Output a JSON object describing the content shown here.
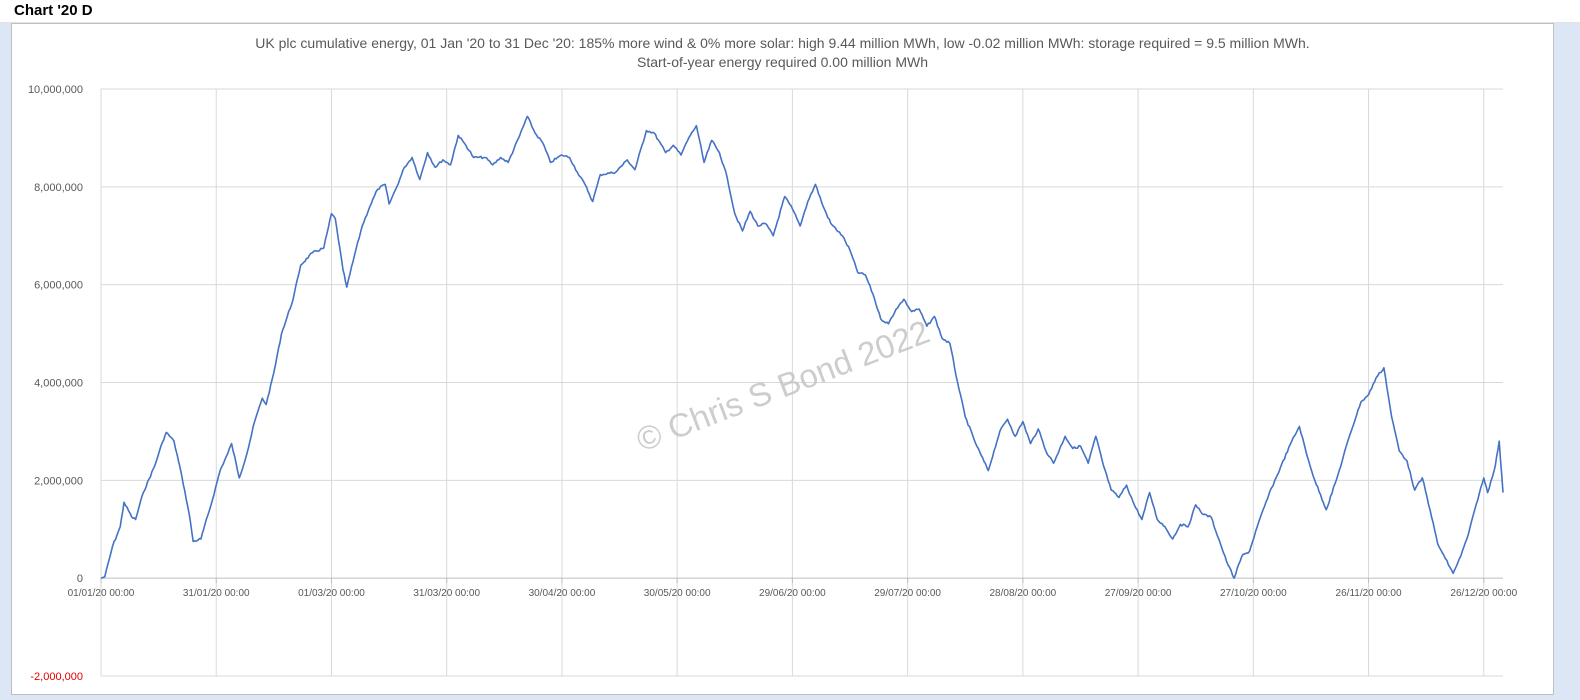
{
  "sheet": {
    "title": "Chart '20 D"
  },
  "watermark": "© Chris S Bond  2022",
  "colors": {
    "line": "#4472c4",
    "grid": "#d9d9d9",
    "negative_label": "#e00000",
    "text": "#595959"
  },
  "chart_data": {
    "type": "line",
    "title": "UK plc cumulative energy, 01 Jan '20 to 31 Dec '20: 185% more wind & 0% more solar: high 9.44 million MWh, low -0.02 million MWh: storage required = 9.5 million MWh.",
    "subtitle": "Start-of-year energy required 0.00 million MWh",
    "xlabel": "",
    "ylabel": "",
    "ylim": [
      -2000000,
      10000000
    ],
    "yticks": [
      {
        "value": 10000000,
        "label": "10,000,000"
      },
      {
        "value": 8000000,
        "label": "8,000,000"
      },
      {
        "value": 6000000,
        "label": "6,000,000"
      },
      {
        "value": 4000000,
        "label": "4,000,000"
      },
      {
        "value": 2000000,
        "label": "2,000,000"
      },
      {
        "value": 0,
        "label": "0"
      },
      {
        "value": -2000000,
        "label": "-2,000,000"
      }
    ],
    "xlim": [
      "2020-01-01",
      "2020-12-31"
    ],
    "xticks": [
      {
        "date": "2020-01-01",
        "label": "01/01/20 00:00"
      },
      {
        "date": "2020-01-31",
        "label": "31/01/20 00:00"
      },
      {
        "date": "2020-03-01",
        "label": "01/03/20 00:00"
      },
      {
        "date": "2020-03-31",
        "label": "31/03/20 00:00"
      },
      {
        "date": "2020-04-30",
        "label": "30/04/20 00:00"
      },
      {
        "date": "2020-05-30",
        "label": "30/05/20 00:00"
      },
      {
        "date": "2020-06-29",
        "label": "29/06/20 00:00"
      },
      {
        "date": "2020-07-29",
        "label": "29/07/20 00:00"
      },
      {
        "date": "2020-08-28",
        "label": "28/08/20 00:00"
      },
      {
        "date": "2020-09-27",
        "label": "27/09/20 00:00"
      },
      {
        "date": "2020-10-27",
        "label": "27/10/20 00:00"
      },
      {
        "date": "2020-11-26",
        "label": "26/11/20 00:00"
      },
      {
        "date": "2020-12-26",
        "label": "26/12/20 00:00"
      }
    ],
    "grid": true,
    "legend": "none",
    "series": [
      {
        "points": [
          [
            "2020-01-01",
            0
          ],
          [
            "2020-01-02",
            30000
          ],
          [
            "2020-01-04",
            650000
          ],
          [
            "2020-01-06",
            1050000
          ],
          [
            "2020-01-07",
            1550000
          ],
          [
            "2020-01-09",
            1250000
          ],
          [
            "2020-01-10",
            1200000
          ],
          [
            "2020-01-12",
            1750000
          ],
          [
            "2020-01-15",
            2300000
          ],
          [
            "2020-01-17",
            2780000
          ],
          [
            "2020-01-18",
            2980000
          ],
          [
            "2020-01-20",
            2800000
          ],
          [
            "2020-01-22",
            2100000
          ],
          [
            "2020-01-24",
            1300000
          ],
          [
            "2020-01-25",
            750000
          ],
          [
            "2020-01-27",
            800000
          ],
          [
            "2020-01-30",
            1600000
          ],
          [
            "2020-02-01",
            2200000
          ],
          [
            "2020-02-03",
            2550000
          ],
          [
            "2020-02-04",
            2750000
          ],
          [
            "2020-02-06",
            2050000
          ],
          [
            "2020-02-08",
            2550000
          ],
          [
            "2020-02-10",
            3200000
          ],
          [
            "2020-02-12",
            3680000
          ],
          [
            "2020-02-13",
            3550000
          ],
          [
            "2020-02-15",
            4200000
          ],
          [
            "2020-02-17",
            5000000
          ],
          [
            "2020-02-20",
            5700000
          ],
          [
            "2020-02-22",
            6400000
          ],
          [
            "2020-02-25",
            6650000
          ],
          [
            "2020-02-28",
            6750000
          ],
          [
            "2020-03-01",
            7450000
          ],
          [
            "2020-03-02",
            7350000
          ],
          [
            "2020-03-04",
            6300000
          ],
          [
            "2020-03-05",
            5950000
          ],
          [
            "2020-03-07",
            6600000
          ],
          [
            "2020-03-09",
            7200000
          ],
          [
            "2020-03-11",
            7600000
          ],
          [
            "2020-03-13",
            7950000
          ],
          [
            "2020-03-15",
            8050000
          ],
          [
            "2020-03-16",
            7650000
          ],
          [
            "2020-03-18",
            8000000
          ],
          [
            "2020-03-20",
            8400000
          ],
          [
            "2020-03-22",
            8600000
          ],
          [
            "2020-03-24",
            8150000
          ],
          [
            "2020-03-26",
            8700000
          ],
          [
            "2020-03-28",
            8400000
          ],
          [
            "2020-03-30",
            8550000
          ],
          [
            "2020-04-01",
            8450000
          ],
          [
            "2020-04-03",
            9050000
          ],
          [
            "2020-04-05",
            8850000
          ],
          [
            "2020-04-07",
            8600000
          ],
          [
            "2020-04-10",
            8600000
          ],
          [
            "2020-04-12",
            8450000
          ],
          [
            "2020-04-14",
            8600000
          ],
          [
            "2020-04-16",
            8500000
          ],
          [
            "2020-04-19",
            9050000
          ],
          [
            "2020-04-21",
            9440000
          ],
          [
            "2020-04-23",
            9100000
          ],
          [
            "2020-04-25",
            8900000
          ],
          [
            "2020-04-27",
            8500000
          ],
          [
            "2020-04-30",
            8650000
          ],
          [
            "2020-05-02",
            8600000
          ],
          [
            "2020-05-04",
            8300000
          ],
          [
            "2020-05-06",
            8050000
          ],
          [
            "2020-05-08",
            7700000
          ],
          [
            "2020-05-10",
            8250000
          ],
          [
            "2020-05-14",
            8300000
          ],
          [
            "2020-05-17",
            8550000
          ],
          [
            "2020-05-19",
            8350000
          ],
          [
            "2020-05-22",
            9150000
          ],
          [
            "2020-05-24",
            9100000
          ],
          [
            "2020-05-27",
            8700000
          ],
          [
            "2020-05-29",
            8850000
          ],
          [
            "2020-05-31",
            8650000
          ],
          [
            "2020-06-02",
            9000000
          ],
          [
            "2020-06-04",
            9250000
          ],
          [
            "2020-06-06",
            8500000
          ],
          [
            "2020-06-08",
            8950000
          ],
          [
            "2020-06-10",
            8700000
          ],
          [
            "2020-06-12",
            8200000
          ],
          [
            "2020-06-14",
            7450000
          ],
          [
            "2020-06-16",
            7100000
          ],
          [
            "2020-06-18",
            7500000
          ],
          [
            "2020-06-20",
            7200000
          ],
          [
            "2020-06-22",
            7250000
          ],
          [
            "2020-06-24",
            7000000
          ],
          [
            "2020-06-27",
            7800000
          ],
          [
            "2020-06-29",
            7550000
          ],
          [
            "2020-07-01",
            7200000
          ],
          [
            "2020-07-03",
            7700000
          ],
          [
            "2020-07-05",
            8050000
          ],
          [
            "2020-07-07",
            7600000
          ],
          [
            "2020-07-09",
            7250000
          ],
          [
            "2020-07-12",
            7000000
          ],
          [
            "2020-07-14",
            6700000
          ],
          [
            "2020-07-16",
            6250000
          ],
          [
            "2020-07-18",
            6200000
          ],
          [
            "2020-07-20",
            5800000
          ],
          [
            "2020-07-22",
            5300000
          ],
          [
            "2020-07-24",
            5200000
          ],
          [
            "2020-07-26",
            5500000
          ],
          [
            "2020-07-28",
            5700000
          ],
          [
            "2020-07-30",
            5450000
          ],
          [
            "2020-08-01",
            5500000
          ],
          [
            "2020-08-03",
            5150000
          ],
          [
            "2020-08-05",
            5350000
          ],
          [
            "2020-08-07",
            4900000
          ],
          [
            "2020-08-09",
            4800000
          ],
          [
            "2020-08-11",
            4000000
          ],
          [
            "2020-08-13",
            3300000
          ],
          [
            "2020-08-16",
            2700000
          ],
          [
            "2020-08-19",
            2200000
          ],
          [
            "2020-08-22",
            3000000
          ],
          [
            "2020-08-24",
            3250000
          ],
          [
            "2020-08-26",
            2900000
          ],
          [
            "2020-08-28",
            3200000
          ],
          [
            "2020-08-30",
            2750000
          ],
          [
            "2020-09-01",
            3050000
          ],
          [
            "2020-09-03",
            2600000
          ],
          [
            "2020-09-05",
            2350000
          ],
          [
            "2020-09-08",
            2900000
          ],
          [
            "2020-09-10",
            2650000
          ],
          [
            "2020-09-12",
            2700000
          ],
          [
            "2020-09-14",
            2350000
          ],
          [
            "2020-09-16",
            2900000
          ],
          [
            "2020-09-18",
            2300000
          ],
          [
            "2020-09-20",
            1800000
          ],
          [
            "2020-09-22",
            1650000
          ],
          [
            "2020-09-24",
            1900000
          ],
          [
            "2020-09-26",
            1500000
          ],
          [
            "2020-09-28",
            1200000
          ],
          [
            "2020-09-30",
            1750000
          ],
          [
            "2020-10-02",
            1200000
          ],
          [
            "2020-10-04",
            1050000
          ],
          [
            "2020-10-06",
            800000
          ],
          [
            "2020-10-08",
            1100000
          ],
          [
            "2020-10-10",
            1050000
          ],
          [
            "2020-10-12",
            1500000
          ],
          [
            "2020-10-14",
            1300000
          ],
          [
            "2020-10-16",
            1250000
          ],
          [
            "2020-10-18",
            800000
          ],
          [
            "2020-10-20",
            350000
          ],
          [
            "2020-10-22",
            0
          ],
          [
            "2020-10-24",
            450000
          ],
          [
            "2020-10-26",
            550000
          ],
          [
            "2020-10-28",
            1050000
          ],
          [
            "2020-10-31",
            1700000
          ],
          [
            "2020-11-03",
            2250000
          ],
          [
            "2020-11-06",
            2800000
          ],
          [
            "2020-11-08",
            3100000
          ],
          [
            "2020-11-10",
            2500000
          ],
          [
            "2020-11-12",
            2000000
          ],
          [
            "2020-11-15",
            1400000
          ],
          [
            "2020-11-18",
            2100000
          ],
          [
            "2020-11-21",
            2900000
          ],
          [
            "2020-11-24",
            3600000
          ],
          [
            "2020-11-26",
            3750000
          ],
          [
            "2020-11-28",
            4100000
          ],
          [
            "2020-11-30",
            4300000
          ],
          [
            "2020-12-02",
            3300000
          ],
          [
            "2020-12-04",
            2600000
          ],
          [
            "2020-12-06",
            2400000
          ],
          [
            "2020-12-08",
            1800000
          ],
          [
            "2020-12-10",
            2050000
          ],
          [
            "2020-12-12",
            1400000
          ],
          [
            "2020-12-14",
            700000
          ],
          [
            "2020-12-16",
            400000
          ],
          [
            "2020-12-18",
            100000
          ],
          [
            "2020-12-20",
            450000
          ],
          [
            "2020-12-22",
            900000
          ],
          [
            "2020-12-24",
            1500000
          ],
          [
            "2020-12-26",
            2050000
          ],
          [
            "2020-12-27",
            1750000
          ],
          [
            "2020-12-29",
            2300000
          ],
          [
            "2020-12-30",
            2800000
          ],
          [
            "2020-12-31",
            1750000
          ]
        ]
      }
    ]
  }
}
